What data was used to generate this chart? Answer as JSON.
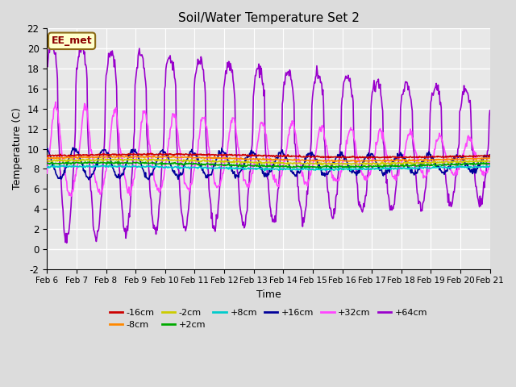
{
  "title": "Soil/Water Temperature Set 2",
  "xlabel": "Time",
  "ylabel": "Temperature (C)",
  "ylim": [
    -2,
    22
  ],
  "xlim_days": 15,
  "background_color": "#dcdcdc",
  "plot_bg_color": "#e8e8e8",
  "annotation_text": "EE_met",
  "annotation_bg": "#ffffcc",
  "annotation_border": "#8b6914",
  "annotation_text_color": "#8b0000",
  "series": {
    "-16cm": {
      "color": "#cc0000",
      "linewidth": 1.2
    },
    "-8cm": {
      "color": "#ff8800",
      "linewidth": 1.2
    },
    "-2cm": {
      "color": "#cccc00",
      "linewidth": 1.2
    },
    "+2cm": {
      "color": "#00aa00",
      "linewidth": 1.2
    },
    "+8cm": {
      "color": "#00cccc",
      "linewidth": 1.2
    },
    "+16cm": {
      "color": "#000099",
      "linewidth": 1.2
    },
    "+32cm": {
      "color": "#ff44ff",
      "linewidth": 1.2
    },
    "+64cm": {
      "color": "#9900cc",
      "linewidth": 1.2
    }
  },
  "xtick_labels": [
    "Feb 6",
    "Feb 7",
    "Feb 8",
    "Feb 9",
    "Feb 10",
    "Feb 11",
    "Feb 12",
    "Feb 13",
    "Feb 14",
    "Feb 15",
    "Feb 16",
    "Feb 17",
    "Feb 18",
    "Feb 19",
    "Feb 20",
    "Feb 21"
  ],
  "xtick_positions": [
    0,
    1,
    2,
    3,
    4,
    5,
    6,
    7,
    8,
    9,
    10,
    11,
    12,
    13,
    14,
    15
  ],
  "ytick_labels": [
    "-2",
    "0",
    "2",
    "4",
    "6",
    "8",
    "10",
    "12",
    "14",
    "16",
    "18",
    "20",
    "22"
  ],
  "ytick_positions": [
    -2,
    0,
    2,
    4,
    6,
    8,
    10,
    12,
    14,
    16,
    18,
    20,
    22
  ],
  "legend_entries": [
    "-16cm",
    "-8cm",
    "-2cm",
    "+2cm",
    "+8cm",
    "+16cm",
    "+32cm",
    "+64cm"
  ],
  "legend_colors": [
    "#cc0000",
    "#ff8800",
    "#cccc00",
    "#00aa00",
    "#00cccc",
    "#000099",
    "#ff44ff",
    "#9900cc"
  ]
}
